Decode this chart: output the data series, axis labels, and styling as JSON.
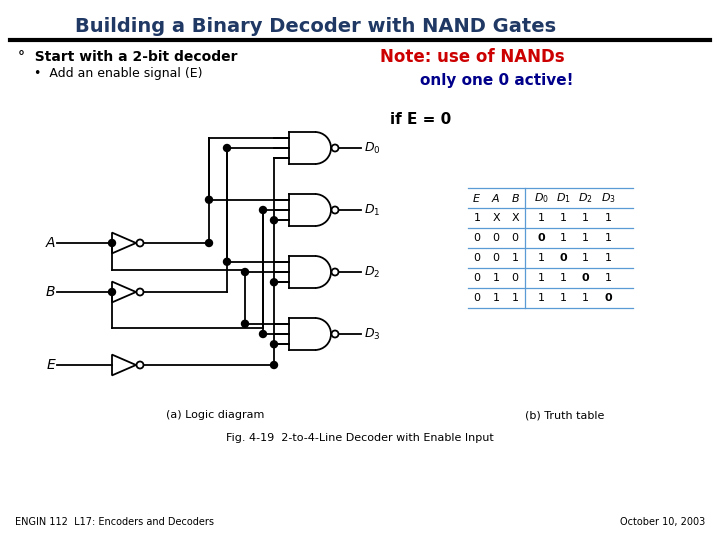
{
  "title": "Building a Binary Decoder with NAND Gates",
  "title_color": "#1F3864",
  "title_fontsize": 14,
  "bullet1": "°  Start with a 2-bit decoder",
  "bullet2": "    •  Add an enable signal (E)",
  "note1": "Note: use of NANDs",
  "note1_color": "#CC0000",
  "note2": "only one 0 active!",
  "note2_color": "#00008B",
  "note3": "if E = 0",
  "note3_color": "#000000",
  "fig_caption": "(a) Logic diagram",
  "fig_caption2": "(b) Truth table",
  "fig_caption3": "Fig. 4-19  2-to-4-Line Decoder with Enable Input",
  "footer_left": "ENGIN 112  L17: Encoders and Decoders",
  "footer_right": "October 10, 2003",
  "bg_color": "#FFFFFF",
  "header_line_color": "#000000",
  "truth_table_rows": [
    [
      "1",
      "X",
      "X",
      "1",
      "1",
      "1",
      "1"
    ],
    [
      "0",
      "0",
      "0",
      "0",
      "1",
      "1",
      "1"
    ],
    [
      "0",
      "0",
      "1",
      "1",
      "0",
      "1",
      "1"
    ],
    [
      "0",
      "1",
      "0",
      "1",
      "1",
      "0",
      "1"
    ],
    [
      "0",
      "1",
      "1",
      "1",
      "1",
      "1",
      "0"
    ]
  ]
}
